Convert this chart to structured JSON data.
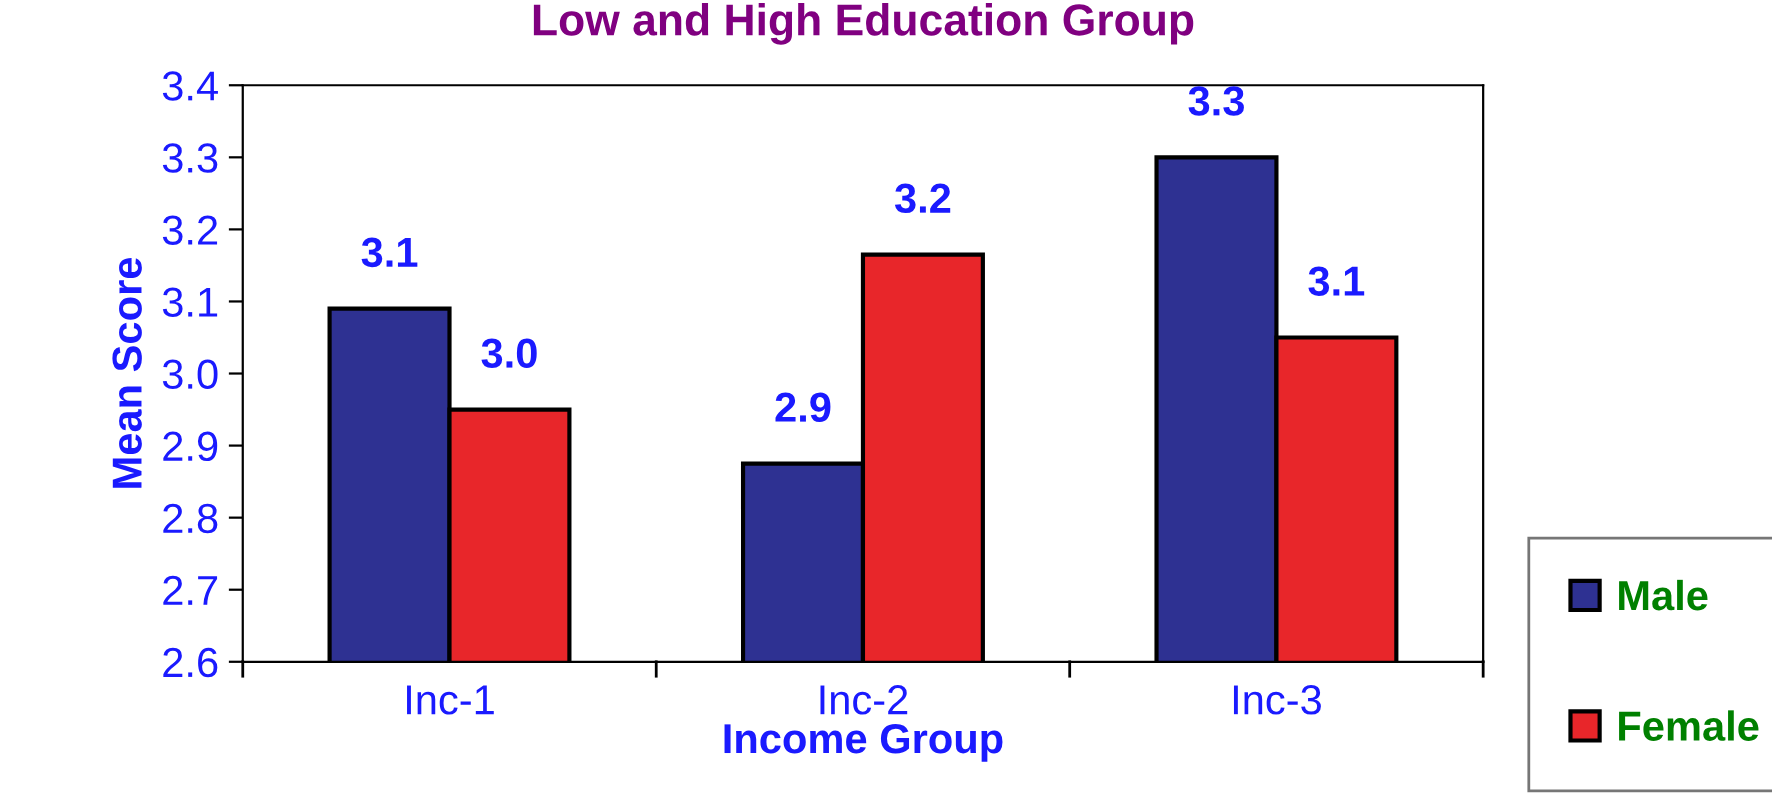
{
  "chart_data": {
    "type": "bar",
    "title": "Low and High Education Group",
    "xlabel": "Income Group",
    "ylabel": "Mean Score",
    "categories": [
      "Inc-1",
      "Inc-2",
      "Inc-3"
    ],
    "series": [
      {
        "name": "Male",
        "color": "#2e3192",
        "values": [
          3.09,
          2.875,
          3.3
        ],
        "value_labels": [
          "3.1",
          "2.9",
          "3.3"
        ]
      },
      {
        "name": "Female",
        "color": "#e8262a",
        "values": [
          2.95,
          3.165,
          3.05
        ],
        "value_labels": [
          "3.0",
          "3.2",
          "3.1"
        ]
      }
    ],
    "ylim": [
      2.6,
      3.4
    ],
    "yticks": [
      "2.6",
      "2.7",
      "2.8",
      "2.9",
      "3.0",
      "3.1",
      "3.2",
      "3.3",
      "3.4"
    ],
    "grid": false,
    "legend": "right"
  }
}
